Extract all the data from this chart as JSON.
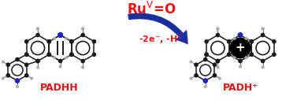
{
  "label_left": "PADHH",
  "label_right": "PADH⁺",
  "bg_color": "#ffffff",
  "title_color": "#ee1111",
  "subtitle_color": "#ee1111",
  "label_color": "#dd1111",
  "arrow_color": "#1a2f9e",
  "mol_dark": "#1a1a1a",
  "mol_gray": "#888888",
  "mol_blue": "#2222bb",
  "fig_width": 3.77,
  "fig_height": 1.27,
  "dpi": 100
}
